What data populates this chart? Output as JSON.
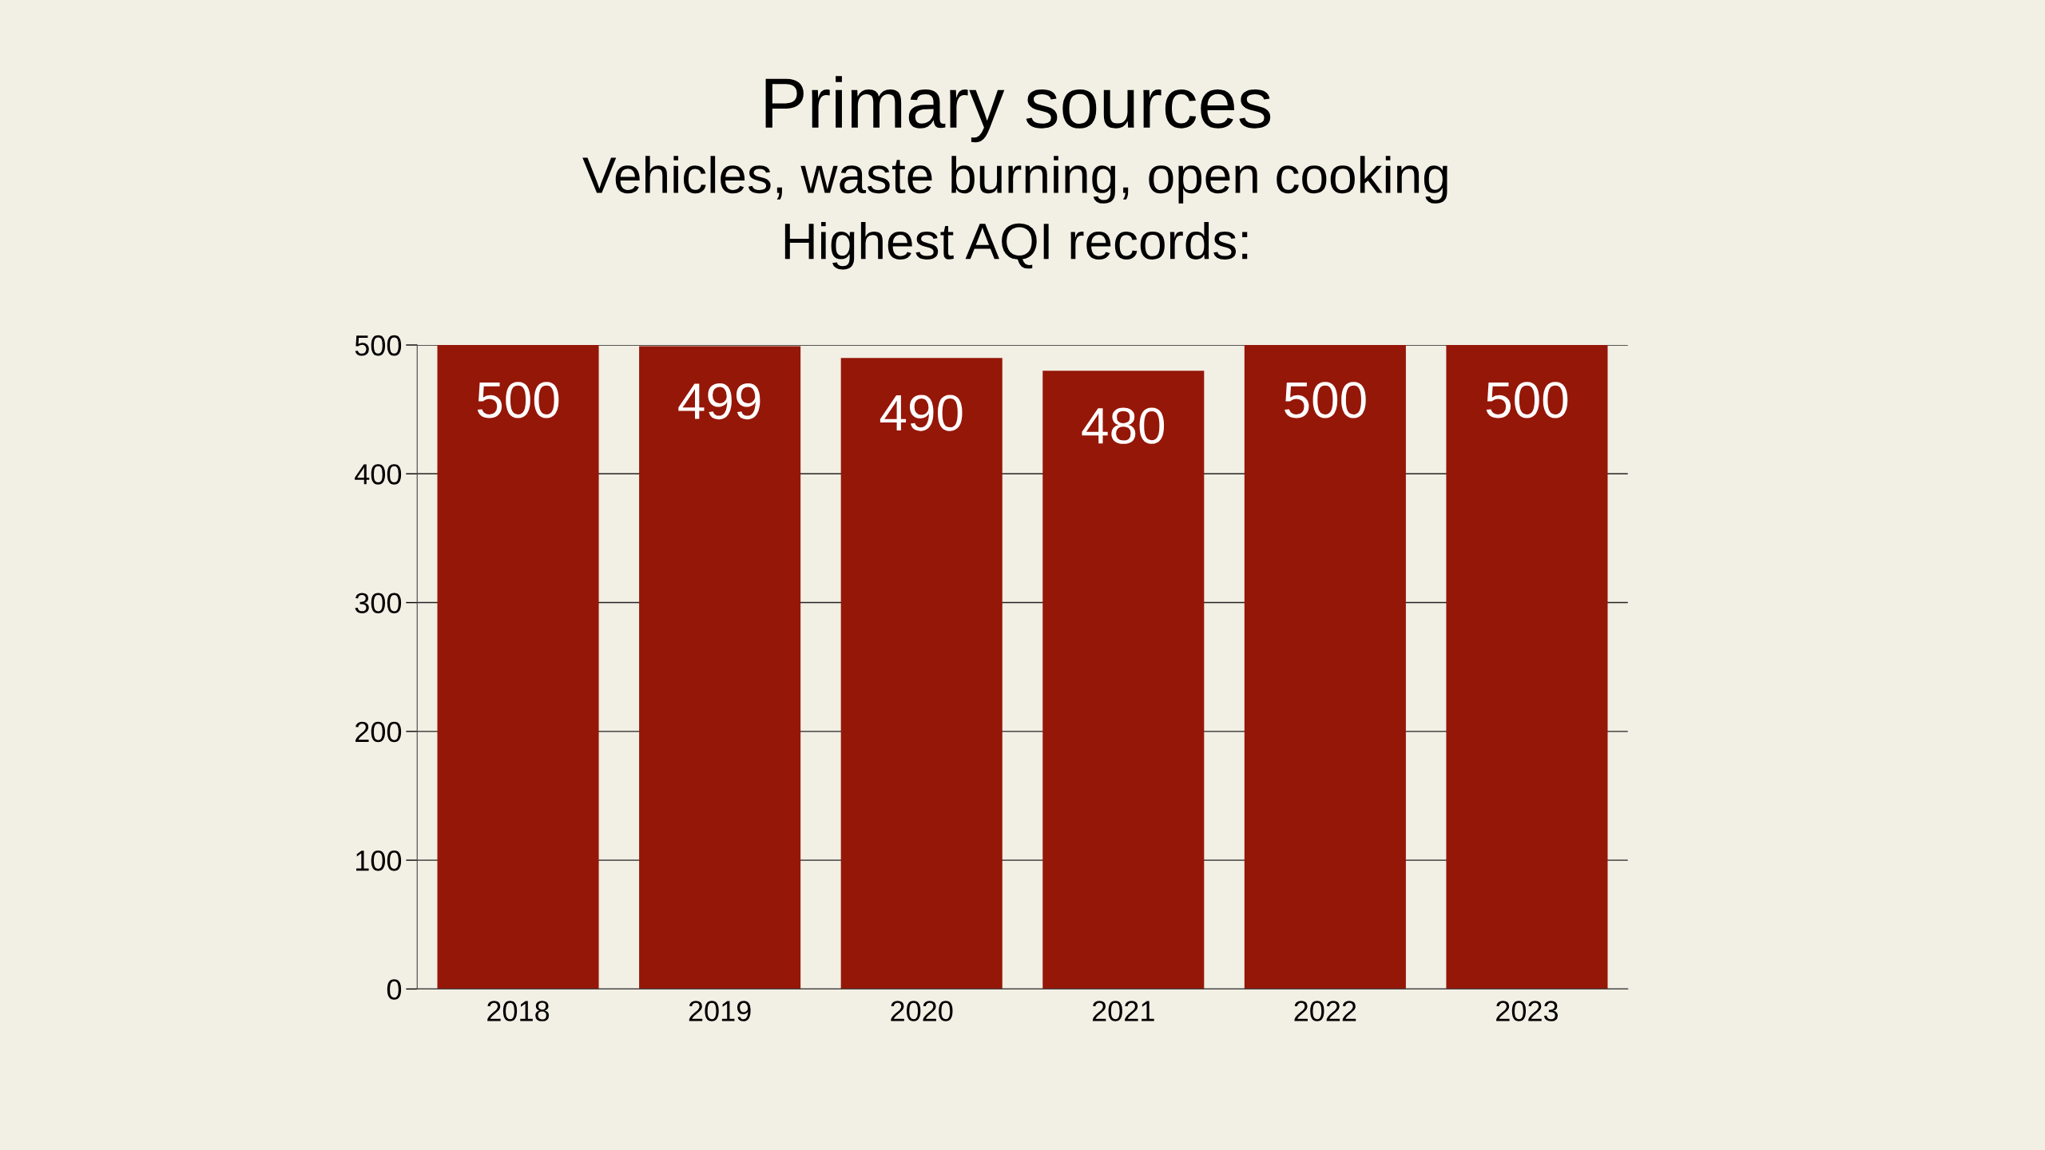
{
  "chart_data": {
    "type": "bar",
    "title": "Primary sources",
    "subtitle": "Vehicles, waste burning, open cooking\nHighest AQI records:",
    "categories": [
      "2018",
      "2019",
      "2020",
      "2021",
      "2022",
      "2023"
    ],
    "values": [
      500,
      499,
      490,
      480,
      500,
      500
    ],
    "color": "#951708",
    "ylim": [
      0,
      500
    ],
    "yticks": [
      0,
      100,
      200,
      300,
      400,
      500
    ],
    "grid": "y",
    "data_labels": true,
    "legend": false
  }
}
